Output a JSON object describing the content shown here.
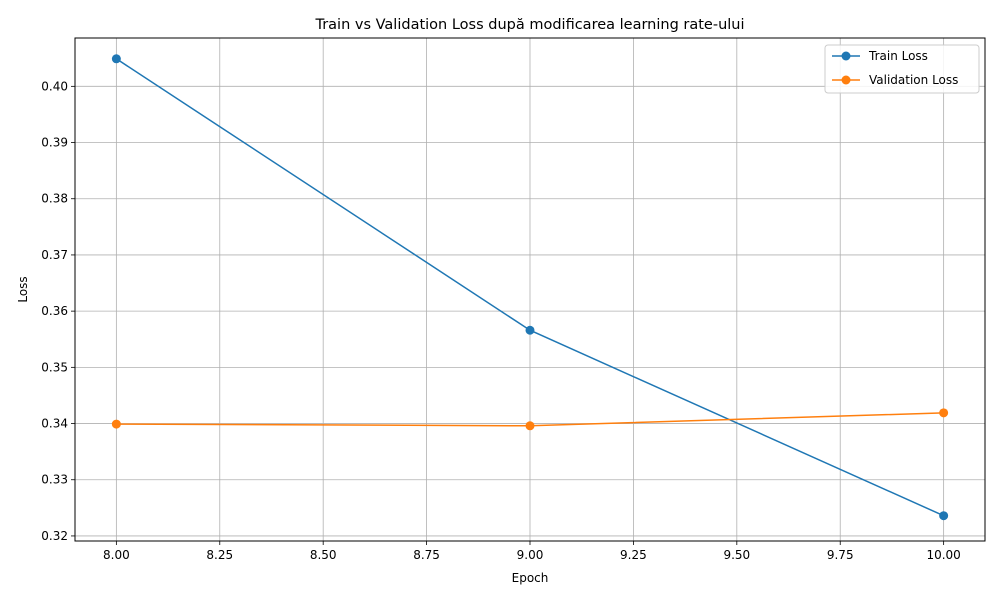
{
  "chart_data": {
    "type": "line",
    "title": "Train vs Validation Loss după modificarea learning rate-ului",
    "xlabel": "Epoch",
    "ylabel": "Loss",
    "x": [
      8,
      9,
      10
    ],
    "xlim": [
      7.9,
      10.1
    ],
    "ylim": [
      0.3191,
      0.4086
    ],
    "xticks": [
      8.0,
      8.25,
      8.5,
      8.75,
      9.0,
      9.25,
      9.5,
      9.75,
      10.0
    ],
    "xtick_labels": [
      "8.00",
      "8.25",
      "8.50",
      "8.75",
      "9.00",
      "9.25",
      "9.50",
      "9.75",
      "10.00"
    ],
    "yticks": [
      0.32,
      0.33,
      0.34,
      0.35,
      0.36,
      0.37,
      0.38,
      0.39,
      0.4
    ],
    "ytick_labels": [
      "0.32",
      "0.33",
      "0.34",
      "0.35",
      "0.36",
      "0.37",
      "0.38",
      "0.39",
      "0.40"
    ],
    "grid": true,
    "legend_position": "top-right",
    "series": [
      {
        "name": "Train Loss",
        "color": "#1f77b4",
        "marker": "circle",
        "values": [
          0.4049,
          0.3566,
          0.3236
        ]
      },
      {
        "name": "Validation Loss",
        "color": "#ff7f0e",
        "marker": "circle",
        "values": [
          0.3399,
          0.3396,
          0.3419
        ]
      }
    ]
  }
}
